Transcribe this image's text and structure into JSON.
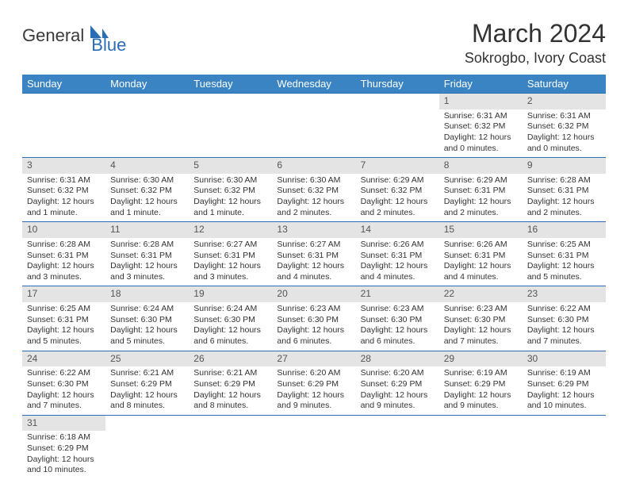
{
  "logo": {
    "part1": "General",
    "part2": "Blue"
  },
  "title": "March 2024",
  "location": "Sokrogbo, Ivory Coast",
  "colors": {
    "header_bg": "#3b84c4",
    "header_fg": "#ffffff",
    "daynum_bg": "#e4e4e4",
    "border": "#2a6db5",
    "logo_blue": "#2a6db5",
    "text": "#333333"
  },
  "dayNames": [
    "Sunday",
    "Monday",
    "Tuesday",
    "Wednesday",
    "Thursday",
    "Friday",
    "Saturday"
  ],
  "weeks": [
    [
      null,
      null,
      null,
      null,
      null,
      {
        "n": "1",
        "sr": "Sunrise: 6:31 AM",
        "ss": "Sunset: 6:32 PM",
        "d1": "Daylight: 12 hours",
        "d2": "and 0 minutes."
      },
      {
        "n": "2",
        "sr": "Sunrise: 6:31 AM",
        "ss": "Sunset: 6:32 PM",
        "d1": "Daylight: 12 hours",
        "d2": "and 0 minutes."
      }
    ],
    [
      {
        "n": "3",
        "sr": "Sunrise: 6:31 AM",
        "ss": "Sunset: 6:32 PM",
        "d1": "Daylight: 12 hours",
        "d2": "and 1 minute."
      },
      {
        "n": "4",
        "sr": "Sunrise: 6:30 AM",
        "ss": "Sunset: 6:32 PM",
        "d1": "Daylight: 12 hours",
        "d2": "and 1 minute."
      },
      {
        "n": "5",
        "sr": "Sunrise: 6:30 AM",
        "ss": "Sunset: 6:32 PM",
        "d1": "Daylight: 12 hours",
        "d2": "and 1 minute."
      },
      {
        "n": "6",
        "sr": "Sunrise: 6:30 AM",
        "ss": "Sunset: 6:32 PM",
        "d1": "Daylight: 12 hours",
        "d2": "and 2 minutes."
      },
      {
        "n": "7",
        "sr": "Sunrise: 6:29 AM",
        "ss": "Sunset: 6:32 PM",
        "d1": "Daylight: 12 hours",
        "d2": "and 2 minutes."
      },
      {
        "n": "8",
        "sr": "Sunrise: 6:29 AM",
        "ss": "Sunset: 6:31 PM",
        "d1": "Daylight: 12 hours",
        "d2": "and 2 minutes."
      },
      {
        "n": "9",
        "sr": "Sunrise: 6:28 AM",
        "ss": "Sunset: 6:31 PM",
        "d1": "Daylight: 12 hours",
        "d2": "and 2 minutes."
      }
    ],
    [
      {
        "n": "10",
        "sr": "Sunrise: 6:28 AM",
        "ss": "Sunset: 6:31 PM",
        "d1": "Daylight: 12 hours",
        "d2": "and 3 minutes."
      },
      {
        "n": "11",
        "sr": "Sunrise: 6:28 AM",
        "ss": "Sunset: 6:31 PM",
        "d1": "Daylight: 12 hours",
        "d2": "and 3 minutes."
      },
      {
        "n": "12",
        "sr": "Sunrise: 6:27 AM",
        "ss": "Sunset: 6:31 PM",
        "d1": "Daylight: 12 hours",
        "d2": "and 3 minutes."
      },
      {
        "n": "13",
        "sr": "Sunrise: 6:27 AM",
        "ss": "Sunset: 6:31 PM",
        "d1": "Daylight: 12 hours",
        "d2": "and 4 minutes."
      },
      {
        "n": "14",
        "sr": "Sunrise: 6:26 AM",
        "ss": "Sunset: 6:31 PM",
        "d1": "Daylight: 12 hours",
        "d2": "and 4 minutes."
      },
      {
        "n": "15",
        "sr": "Sunrise: 6:26 AM",
        "ss": "Sunset: 6:31 PM",
        "d1": "Daylight: 12 hours",
        "d2": "and 4 minutes."
      },
      {
        "n": "16",
        "sr": "Sunrise: 6:25 AM",
        "ss": "Sunset: 6:31 PM",
        "d1": "Daylight: 12 hours",
        "d2": "and 5 minutes."
      }
    ],
    [
      {
        "n": "17",
        "sr": "Sunrise: 6:25 AM",
        "ss": "Sunset: 6:31 PM",
        "d1": "Daylight: 12 hours",
        "d2": "and 5 minutes."
      },
      {
        "n": "18",
        "sr": "Sunrise: 6:24 AM",
        "ss": "Sunset: 6:30 PM",
        "d1": "Daylight: 12 hours",
        "d2": "and 5 minutes."
      },
      {
        "n": "19",
        "sr": "Sunrise: 6:24 AM",
        "ss": "Sunset: 6:30 PM",
        "d1": "Daylight: 12 hours",
        "d2": "and 6 minutes."
      },
      {
        "n": "20",
        "sr": "Sunrise: 6:23 AM",
        "ss": "Sunset: 6:30 PM",
        "d1": "Daylight: 12 hours",
        "d2": "and 6 minutes."
      },
      {
        "n": "21",
        "sr": "Sunrise: 6:23 AM",
        "ss": "Sunset: 6:30 PM",
        "d1": "Daylight: 12 hours",
        "d2": "and 6 minutes."
      },
      {
        "n": "22",
        "sr": "Sunrise: 6:23 AM",
        "ss": "Sunset: 6:30 PM",
        "d1": "Daylight: 12 hours",
        "d2": "and 7 minutes."
      },
      {
        "n": "23",
        "sr": "Sunrise: 6:22 AM",
        "ss": "Sunset: 6:30 PM",
        "d1": "Daylight: 12 hours",
        "d2": "and 7 minutes."
      }
    ],
    [
      {
        "n": "24",
        "sr": "Sunrise: 6:22 AM",
        "ss": "Sunset: 6:30 PM",
        "d1": "Daylight: 12 hours",
        "d2": "and 7 minutes."
      },
      {
        "n": "25",
        "sr": "Sunrise: 6:21 AM",
        "ss": "Sunset: 6:29 PM",
        "d1": "Daylight: 12 hours",
        "d2": "and 8 minutes."
      },
      {
        "n": "26",
        "sr": "Sunrise: 6:21 AM",
        "ss": "Sunset: 6:29 PM",
        "d1": "Daylight: 12 hours",
        "d2": "and 8 minutes."
      },
      {
        "n": "27",
        "sr": "Sunrise: 6:20 AM",
        "ss": "Sunset: 6:29 PM",
        "d1": "Daylight: 12 hours",
        "d2": "and 9 minutes."
      },
      {
        "n": "28",
        "sr": "Sunrise: 6:20 AM",
        "ss": "Sunset: 6:29 PM",
        "d1": "Daylight: 12 hours",
        "d2": "and 9 minutes."
      },
      {
        "n": "29",
        "sr": "Sunrise: 6:19 AM",
        "ss": "Sunset: 6:29 PM",
        "d1": "Daylight: 12 hours",
        "d2": "and 9 minutes."
      },
      {
        "n": "30",
        "sr": "Sunrise: 6:19 AM",
        "ss": "Sunset: 6:29 PM",
        "d1": "Daylight: 12 hours",
        "d2": "and 10 minutes."
      }
    ],
    [
      {
        "n": "31",
        "sr": "Sunrise: 6:18 AM",
        "ss": "Sunset: 6:29 PM",
        "d1": "Daylight: 12 hours",
        "d2": "and 10 minutes."
      },
      null,
      null,
      null,
      null,
      null,
      null
    ]
  ]
}
